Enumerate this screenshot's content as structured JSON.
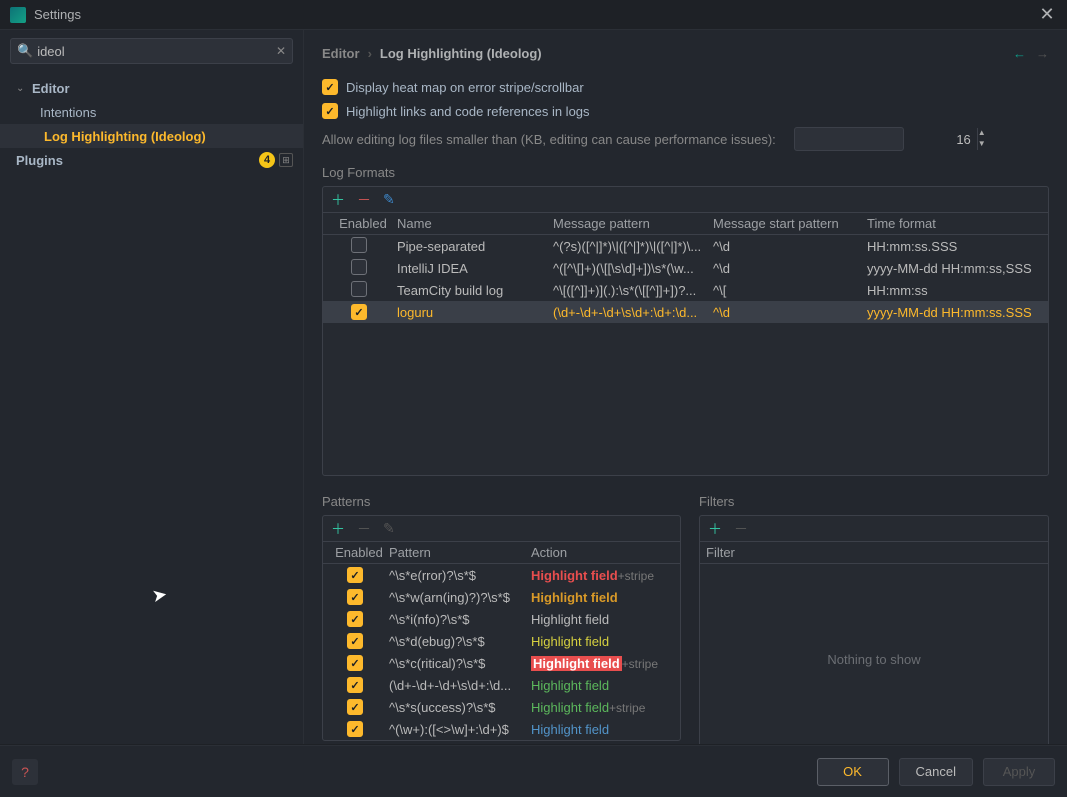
{
  "titlebar": {
    "title": "Settings"
  },
  "sidebar": {
    "search_value": "ideol",
    "items": [
      {
        "label": "Editor",
        "level": 0,
        "bold": true,
        "selected": false,
        "expandable": true
      },
      {
        "label": "Intentions",
        "level": 1,
        "bold": false,
        "selected": false
      },
      {
        "label": "Log Highlighting (Ideolog)",
        "level": 2,
        "bold": true,
        "selected": true
      },
      {
        "label": "Plugins",
        "level": 0,
        "bold": true,
        "selected": false,
        "badge": "4",
        "glyph": true
      }
    ]
  },
  "breadcrumb": {
    "root": "Editor",
    "current": "Log Highlighting (Ideolog)"
  },
  "options": {
    "heatmap": {
      "label": "Display heat map on error stripe/scrollbar",
      "checked": true
    },
    "links": {
      "label": "Highlight links and code references in logs",
      "checked": true
    },
    "editsize_label": "Allow editing log files smaller than (KB, editing can cause performance issues):",
    "editsize_value": "16"
  },
  "log_formats": {
    "title": "Log Formats",
    "headers": {
      "enabled": "Enabled",
      "name": "Name",
      "msg": "Message pattern",
      "start": "Message start pattern",
      "time": "Time format"
    },
    "rows": [
      {
        "enabled": false,
        "name": "Pipe-separated",
        "msg": "^(?s)([^|]*)\\|([^|]*)\\|([^|]*)\\...",
        "start": "^\\d",
        "time": "HH:mm:ss.SSS",
        "selected": false
      },
      {
        "enabled": false,
        "name": "IntelliJ IDEA",
        "msg": "^([^\\[]+)(\\[[\\s\\d]+])\\s*(\\w...",
        "start": "^\\d",
        "time": "yyyy-MM-dd HH:mm:ss,SSS",
        "selected": false
      },
      {
        "enabled": false,
        "name": "TeamCity build log",
        "msg": "^\\[([^]]+)](.):\\s*(\\[[^]]+])?...",
        "start": "^\\[",
        "time": "HH:mm:ss",
        "selected": false
      },
      {
        "enabled": true,
        "name": "loguru",
        "msg": "(\\d+-\\d+-\\d+\\s\\d+:\\d+:\\d...",
        "start": "^\\d",
        "time": "yyyy-MM-dd HH:mm:ss.SSS",
        "selected": true
      }
    ]
  },
  "patterns": {
    "title": "Patterns",
    "headers": {
      "enabled": "Enabled",
      "pattern": "Pattern",
      "action": "Action"
    },
    "rows": [
      {
        "enabled": true,
        "pattern": "^\\s*e(rror)?\\s*$",
        "hl_class": "hl-error",
        "hl_text": "Highlight field",
        "stripe": "+stripe"
      },
      {
        "enabled": true,
        "pattern": "^\\s*w(arn(ing)?)?\\s*$",
        "hl_class": "hl-warn",
        "hl_text": "Highlight field",
        "stripe": ""
      },
      {
        "enabled": true,
        "pattern": "^\\s*i(nfo)?\\s*$",
        "hl_class": "hl-plain",
        "hl_text": "Highlight field",
        "stripe": ""
      },
      {
        "enabled": true,
        "pattern": "^\\s*d(ebug)?\\s*$",
        "hl_class": "hl-debug",
        "hl_text": "Highlight field",
        "stripe": ""
      },
      {
        "enabled": true,
        "pattern": "^\\s*c(ritical)?\\s*$",
        "hl_class": "hl-crit",
        "hl_text": "Highlight field",
        "stripe": "+stripe"
      },
      {
        "enabled": true,
        "pattern": "(\\d+-\\d+-\\d+\\s\\d+:\\d...",
        "hl_class": "hl-green",
        "hl_text": "Highlight field",
        "stripe": ""
      },
      {
        "enabled": true,
        "pattern": "^\\s*s(uccess)?\\s*$",
        "hl_class": "hl-green",
        "hl_text": "Highlight field",
        "stripe": "+stripe"
      },
      {
        "enabled": true,
        "pattern": "^(\\w+):([<>\\w]+:\\d+)$",
        "hl_class": "hl-blue",
        "hl_text": "Highlight field",
        "stripe": ""
      }
    ]
  },
  "filters": {
    "title": "Filters",
    "header": "Filter",
    "empty": "Nothing to show"
  },
  "footer": {
    "ok": "OK",
    "cancel": "Cancel",
    "apply": "Apply"
  }
}
